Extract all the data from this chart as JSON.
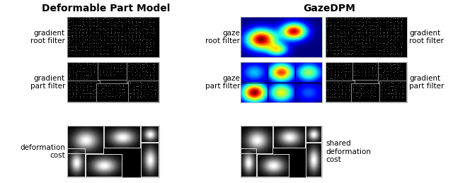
{
  "title_left": "Deformable Part Model",
  "title_right": "GazeDPM",
  "label_grad_root": "gradient\nroot filter",
  "label_grad_part": "gradient\npart filter",
  "label_deform": "deformation\ncost",
  "label_gaze_root": "gaze\nroot filter",
  "label_gaze_part": "gaze\npart filter",
  "label_shared_deform": "shared\ndeformation\ncost",
  "label_grad_root_right": "gradient\nroot filter",
  "label_grad_part_right": "gradient\npart filter",
  "bg_color": "#ffffff",
  "title_fontsize": 10,
  "label_fontsize": 7.5
}
